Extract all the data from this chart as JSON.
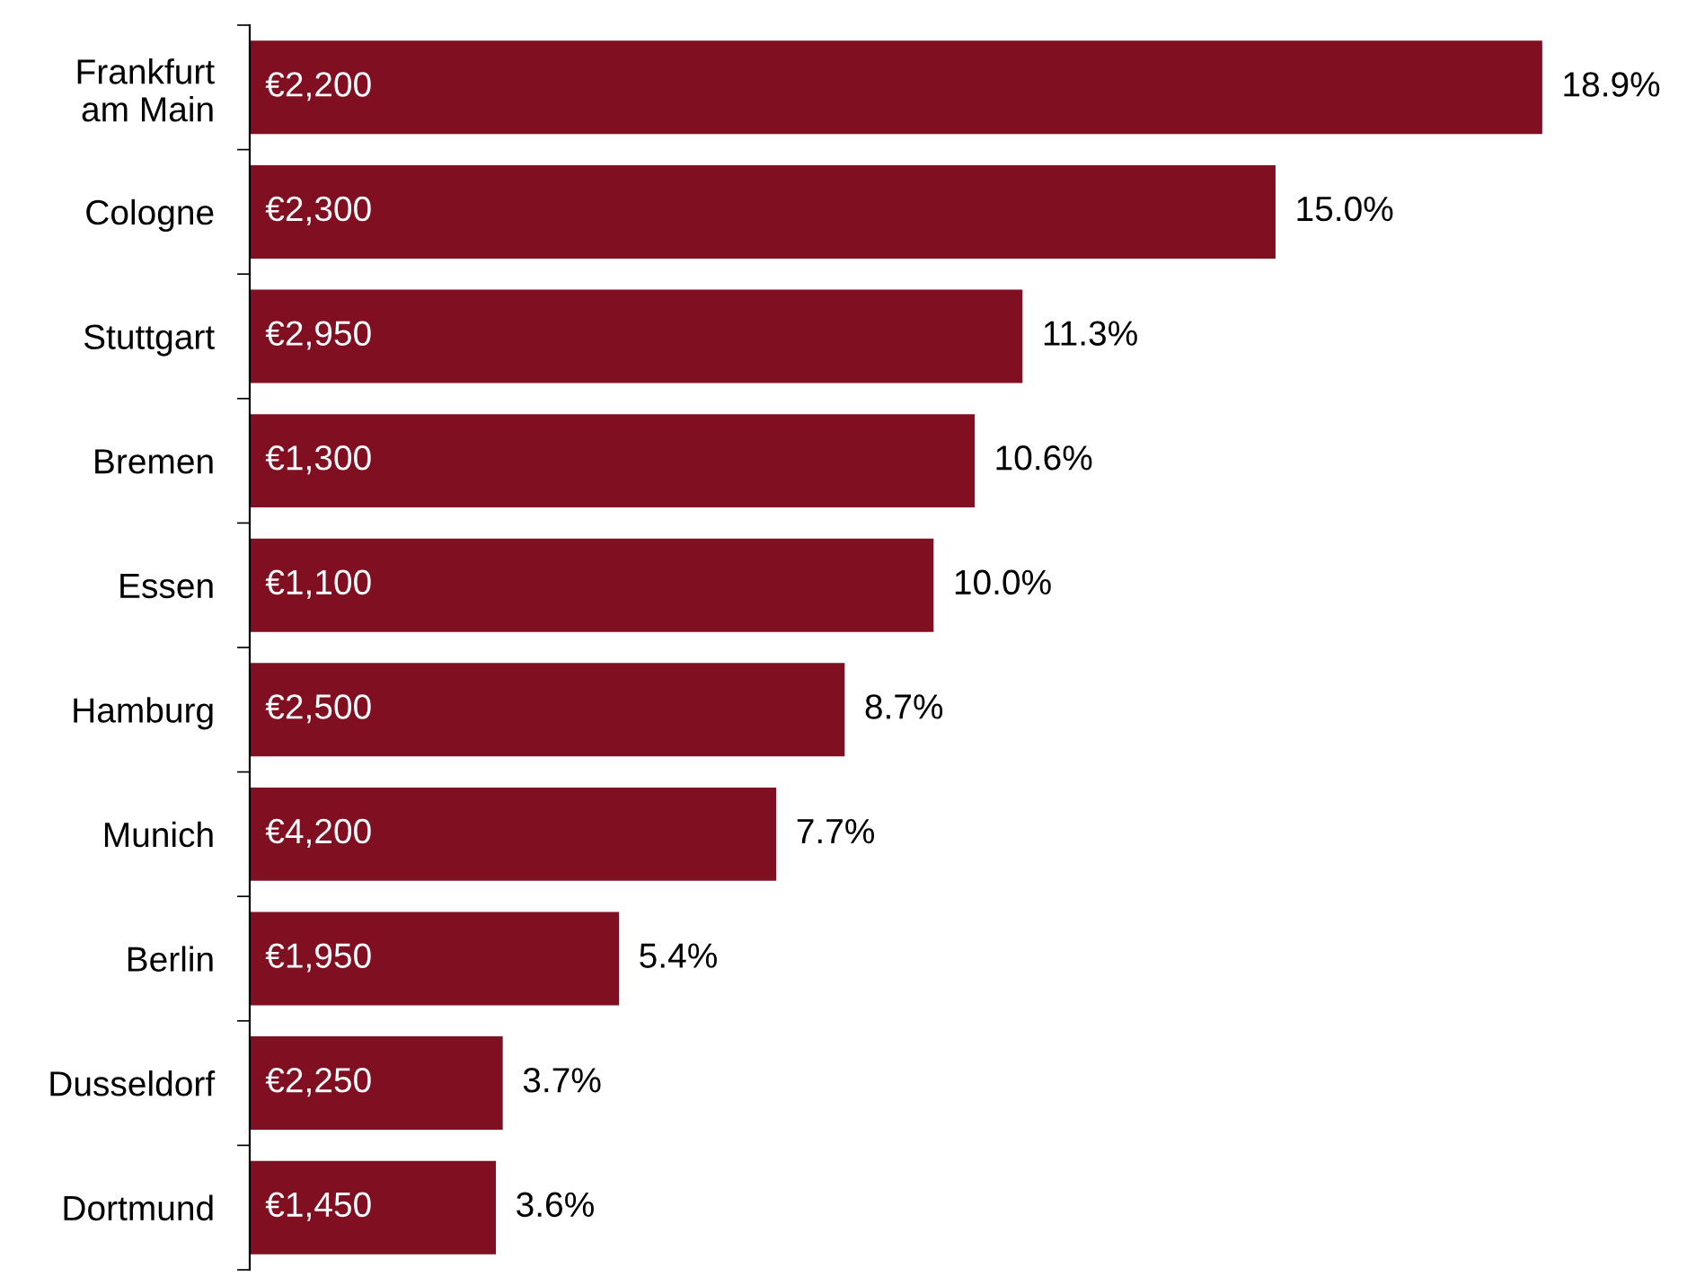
{
  "chart_data": {
    "type": "bar",
    "orientation": "horizontal",
    "categories": [
      "Frankfurt\nam Main",
      "Cologne",
      "Stuttgart",
      "Bremen",
      "Essen",
      "Hamburg",
      "Munich",
      "Berlin",
      "Dusseldorf",
      "Dortmund"
    ],
    "values": [
      18.9,
      15.0,
      11.3,
      10.6,
      10.0,
      8.7,
      7.7,
      5.4,
      3.7,
      3.6
    ],
    "value_labels": [
      "18.9%",
      "15.0%",
      "11.3%",
      "10.6%",
      "10.0%",
      "8.7%",
      "7.7%",
      "5.4%",
      "3.7%",
      "3.6%"
    ],
    "color": "#800f22",
    "annotations": [
      "€2,200",
      "€2,300",
      "€2,950",
      "€1,300",
      "€1,100",
      "€2,500",
      "€4,200",
      "€1,950",
      "€2,250",
      "€1,450"
    ],
    "grid": false,
    "legend": false
  }
}
